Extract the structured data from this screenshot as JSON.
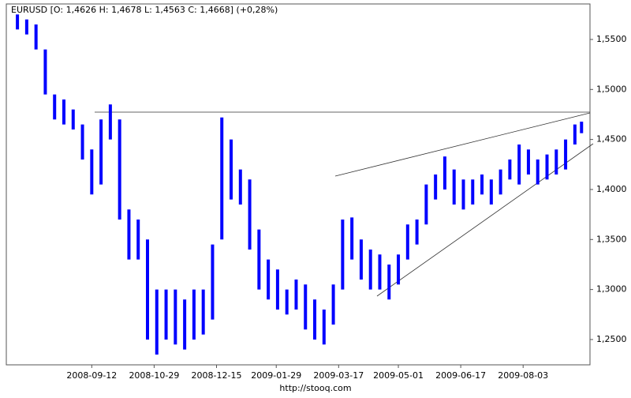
{
  "chart_data": {
    "type": "range-bar",
    "title": "EURUSD [O: 1,4626  H: 1,4678  L: 1,4563  C: 1,4668] (+0,28%)",
    "footer": "http://stooq.com",
    "color": "#0000ff",
    "x": [
      "2008-07-18",
      "2008-07-25",
      "2008-08-01",
      "2008-08-08",
      "2008-08-15",
      "2008-08-22",
      "2008-08-29",
      "2008-09-05",
      "2008-09-12",
      "2008-09-19",
      "2008-09-26",
      "2008-10-03",
      "2008-10-10",
      "2008-10-17",
      "2008-10-24",
      "2008-10-31",
      "2008-11-07",
      "2008-11-14",
      "2008-11-21",
      "2008-11-28",
      "2008-12-05",
      "2008-12-12",
      "2008-12-19",
      "2008-12-26",
      "2009-01-02",
      "2009-01-09",
      "2009-01-16",
      "2009-01-23",
      "2009-01-30",
      "2009-02-06",
      "2009-02-13",
      "2009-02-20",
      "2009-02-27",
      "2009-03-06",
      "2009-03-13",
      "2009-03-20",
      "2009-03-27",
      "2009-04-03",
      "2009-04-10",
      "2009-04-17",
      "2009-04-24",
      "2009-05-01",
      "2009-05-08",
      "2009-05-15",
      "2009-05-22",
      "2009-05-29",
      "2009-06-05",
      "2009-06-12",
      "2009-06-19",
      "2009-06-26",
      "2009-07-03",
      "2009-07-10",
      "2009-07-17",
      "2009-07-24",
      "2009-07-31",
      "2009-08-07",
      "2009-08-14",
      "2009-08-21",
      "2009-08-28",
      "2009-09-04",
      "2009-09-11",
      "2009-09-16"
    ],
    "high": [
      1.575,
      1.57,
      1.565,
      1.54,
      1.495,
      1.49,
      1.48,
      1.465,
      1.44,
      1.47,
      1.485,
      1.47,
      1.38,
      1.37,
      1.35,
      1.3,
      1.3,
      1.3,
      1.29,
      1.3,
      1.3,
      1.345,
      1.472,
      1.45,
      1.42,
      1.41,
      1.36,
      1.33,
      1.32,
      1.3,
      1.31,
      1.305,
      1.29,
      1.28,
      1.305,
      1.37,
      1.372,
      1.35,
      1.34,
      1.335,
      1.325,
      1.335,
      1.365,
      1.37,
      1.405,
      1.415,
      1.433,
      1.42,
      1.41,
      1.41,
      1.415,
      1.41,
      1.42,
      1.43,
      1.445,
      1.44,
      1.43,
      1.435,
      1.44,
      1.45,
      1.465,
      1.4678
    ],
    "low": [
      1.56,
      1.555,
      1.54,
      1.495,
      1.47,
      1.465,
      1.46,
      1.43,
      1.395,
      1.405,
      1.45,
      1.37,
      1.33,
      1.33,
      1.25,
      1.235,
      1.25,
      1.245,
      1.24,
      1.25,
      1.255,
      1.27,
      1.35,
      1.39,
      1.385,
      1.34,
      1.3,
      1.29,
      1.28,
      1.275,
      1.28,
      1.26,
      1.25,
      1.245,
      1.265,
      1.3,
      1.33,
      1.31,
      1.3,
      1.3,
      1.29,
      1.305,
      1.33,
      1.345,
      1.365,
      1.39,
      1.4,
      1.385,
      1.38,
      1.385,
      1.395,
      1.385,
      1.395,
      1.41,
      1.405,
      1.415,
      1.405,
      1.41,
      1.415,
      1.42,
      1.445,
      1.4563
    ],
    "xlim": [
      "2008-07-12",
      "2009-09-20"
    ],
    "xticks": [
      "2008-09-12",
      "2008-10-29",
      "2008-12-15",
      "2009-01-29",
      "2009-03-17",
      "2009-05-01",
      "2009-06-17",
      "2009-08-03"
    ],
    "ylim": [
      1.2247,
      1.5855
    ],
    "yticks": [
      {
        "value": 1.25,
        "label": "1,2500"
      },
      {
        "value": 1.3,
        "label": "1,3000"
      },
      {
        "value": 1.35,
        "label": "1,3500"
      },
      {
        "value": 1.4,
        "label": "1,4000"
      },
      {
        "value": 1.45,
        "label": "1,4500"
      },
      {
        "value": 1.5,
        "label": "1,5000"
      },
      {
        "value": 1.55,
        "label": "1,5500"
      }
    ]
  }
}
